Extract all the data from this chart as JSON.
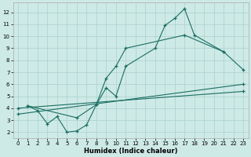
{
  "xlabel": "Humidex (Indice chaleur)",
  "background_color": "#ceeae6",
  "grid_color": "#b0d4d0",
  "line_color": "#1a6e62",
  "xlim": [
    -0.5,
    23.5
  ],
  "ylim": [
    1.5,
    12.8
  ],
  "xticks": [
    0,
    1,
    2,
    3,
    4,
    5,
    6,
    7,
    8,
    9,
    10,
    11,
    12,
    13,
    14,
    15,
    16,
    17,
    18,
    19,
    20,
    21,
    22,
    23
  ],
  "yticks": [
    2,
    3,
    4,
    5,
    6,
    7,
    8,
    9,
    10,
    11,
    12
  ],
  "series1_x": [
    1,
    2,
    3,
    4,
    5,
    6,
    7,
    8,
    9,
    10,
    11,
    14,
    15,
    16,
    17,
    18,
    21
  ],
  "series1_y": [
    4.2,
    3.8,
    2.7,
    3.3,
    2.0,
    2.1,
    2.6,
    4.3,
    5.7,
    5.0,
    7.5,
    9.0,
    10.9,
    11.5,
    12.3,
    10.1,
    8.7
  ],
  "series2_x": [
    1,
    6,
    8,
    9,
    10,
    11,
    17,
    21,
    23
  ],
  "series2_y": [
    4.2,
    3.2,
    4.3,
    6.5,
    7.5,
    9.0,
    10.1,
    8.7,
    7.2
  ],
  "series3_x": [
    0,
    23
  ],
  "series3_y": [
    3.5,
    6.0
  ],
  "series4_x": [
    0,
    23
  ],
  "series4_y": [
    4.0,
    5.4
  ]
}
